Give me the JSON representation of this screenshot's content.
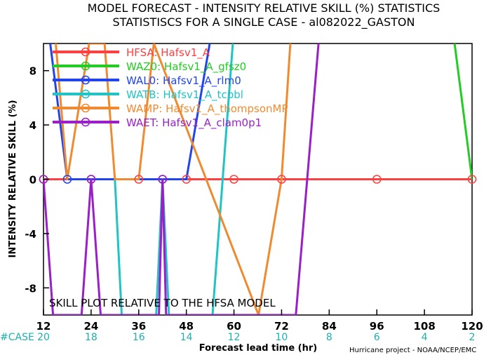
{
  "chart_data": {
    "type": "line",
    "title": "MODEL FORECAST - INTENSITY RELATIVE SKILL (%) STATISTICS",
    "subtitle": "STATISTISCS FOR A SINGLE CASE - al082022_GASTON",
    "xlabel": "Forecast lead time (hr)",
    "ylabel": "INTENSITY RELATIVE SKILL (%)",
    "xlim": [
      12,
      120
    ],
    "ylim": [
      -10,
      10
    ],
    "x_ticks": [
      12,
      24,
      36,
      48,
      60,
      72,
      84,
      96,
      108,
      120
    ],
    "y_ticks": [
      -8,
      -4,
      0,
      4,
      8
    ],
    "case_label": "#CASE",
    "case_counts": [
      20,
      18,
      16,
      14,
      12,
      10,
      8,
      6,
      4,
      2
    ],
    "annotation": "SKILL PLOT RELATIVE TO THE HFSA MODEL",
    "credit": "Hurricane project - NOAA/NCEP/EMC",
    "series": [
      {
        "name": "HFSA: Hafsv1_A",
        "color": "#ff4040",
        "points": [
          [
            12,
            0
          ],
          [
            24,
            0
          ],
          [
            36,
            0
          ],
          [
            48,
            0
          ],
          [
            60,
            0
          ],
          [
            72,
            0
          ],
          [
            96,
            0
          ],
          [
            120,
            0
          ]
        ]
      },
      {
        "name": "WAZ0: Hafsv1_A_gfsz0",
        "color": "#22cc22",
        "points": [
          [
            115.6,
            10
          ],
          [
            120,
            0
          ]
        ]
      },
      {
        "name": "WAL0: Hafsv1_A_rlm0",
        "color": "#2244ee",
        "points": [
          [
            13.7,
            10
          ],
          [
            18,
            0
          ],
          [
            30,
            0
          ],
          [
            36,
            0
          ],
          [
            42,
            0
          ],
          [
            48,
            0
          ],
          [
            53.9,
            10
          ]
        ]
      },
      {
        "name": "WATB: Hafsv1_A_tcpbl",
        "color": "#20c4c4",
        "points": [
          [
            30,
            0
          ],
          [
            31.7,
            -10
          ],
          [
            40.4,
            -10
          ],
          [
            42,
            0
          ],
          [
            43.6,
            -10
          ],
          [
            54.6,
            -10
          ],
          [
            59.7,
            10
          ]
        ]
      },
      {
        "name": "WAMP: Hafsv1_A_thompsonMP",
        "color": "#f08a30",
        "points": [
          [
            15.1,
            10
          ],
          [
            18,
            0
          ],
          [
            23.5,
            10
          ],
          [
            27.4,
            10
          ],
          [
            30,
            0
          ],
          [
            36,
            0
          ],
          [
            39.8,
            10
          ],
          [
            66.2,
            -10
          ],
          [
            72,
            0
          ],
          [
            74.2,
            10
          ]
        ]
      },
      {
        "name": "WAET: Hafsv1_A_clam0p1",
        "color": "#9a1fc8",
        "points": [
          [
            12,
            0
          ],
          [
            14.4,
            -10
          ],
          [
            21.6,
            -10
          ],
          [
            24,
            0
          ],
          [
            26.4,
            -10
          ],
          [
            41.1,
            -10
          ],
          [
            42,
            0
          ],
          [
            42.9,
            -10
          ],
          [
            75.6,
            -10
          ],
          [
            81.3,
            10
          ]
        ]
      }
    ],
    "dots": [
      {
        "series": 0,
        "x": [
          12,
          24,
          36,
          48,
          60,
          72,
          96,
          120
        ]
      },
      {
        "series": 2,
        "x": [
          18,
          42
        ]
      },
      {
        "series": 5,
        "x": [
          12,
          24,
          42
        ]
      }
    ]
  }
}
